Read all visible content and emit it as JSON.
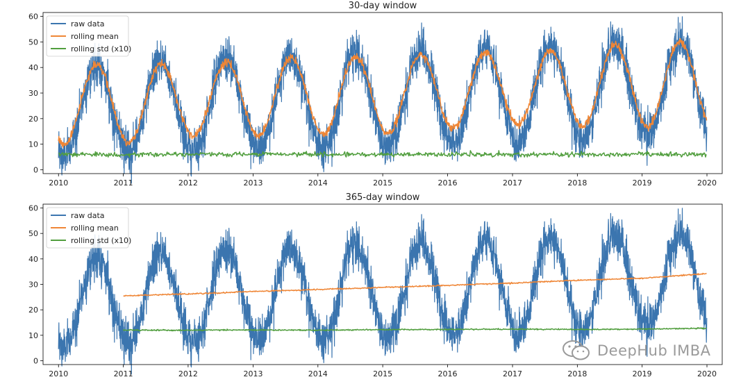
{
  "chart_data": [
    {
      "type": "line",
      "title": "30-day window",
      "xlabel": "",
      "ylabel": "",
      "ylim": [
        -1.5,
        61.5
      ],
      "xlim": [
        "2009-10-06",
        "2020-03-27"
      ],
      "x_ticks": [
        "2010",
        "2011",
        "2012",
        "2013",
        "2014",
        "2015",
        "2016",
        "2017",
        "2018",
        "2019",
        "2020"
      ],
      "y_ticks": [
        0,
        10,
        20,
        30,
        40,
        50,
        60
      ],
      "grid": false,
      "legend_position": "top-left",
      "x_range": [
        "2010-01-01",
        "2019-12-31"
      ],
      "series": [
        {
          "name": "raw data",
          "color": "#3b75af",
          "annual_peaks": [
            48,
            50,
            51,
            52,
            53,
            54,
            55,
            56,
            57,
            57.5
          ],
          "annual_troughs": [
            1,
            2,
            3,
            4,
            4.5,
            5,
            6,
            7,
            8,
            9
          ]
        },
        {
          "name": "rolling mean",
          "color": "#ef8636",
          "window": "30 days",
          "annual_peaks": [
            40,
            42,
            41,
            43,
            44,
            44,
            46,
            46,
            47,
            50
          ],
          "annual_troughs": [
            10,
            10,
            13,
            13,
            14,
            14,
            16,
            18,
            17,
            17
          ]
        },
        {
          "name": "rolling std (x10)",
          "color": "#519e3e",
          "window": "30 days",
          "mean_level": 6,
          "range": [
            5,
            7.5
          ]
        }
      ]
    },
    {
      "type": "line",
      "title": "365-day window",
      "xlabel": "",
      "ylabel": "",
      "ylim": [
        -1.5,
        61.5
      ],
      "xlim": [
        "2009-10-06",
        "2020-03-27"
      ],
      "x_ticks": [
        "2010",
        "2011",
        "2012",
        "2013",
        "2014",
        "2015",
        "2016",
        "2017",
        "2018",
        "2019",
        "2020"
      ],
      "y_ticks": [
        0,
        10,
        20,
        30,
        40,
        50,
        60
      ],
      "grid": false,
      "legend_position": "top-left",
      "x_range": [
        "2010-01-01",
        "2019-12-31"
      ],
      "series": [
        {
          "name": "raw data",
          "color": "#3b75af",
          "annual_peaks": [
            48,
            50,
            51,
            52,
            53,
            54,
            55,
            56,
            57,
            57.5
          ],
          "annual_troughs": [
            1,
            2,
            3,
            4,
            4.5,
            5,
            6,
            7,
            8,
            9
          ]
        },
        {
          "name": "rolling mean",
          "color": "#ef8636",
          "window": "365 days",
          "start": "2011-01-01",
          "x": [
            "2011-01-01",
            "2012-01-01",
            "2013-01-01",
            "2014-01-01",
            "2015-01-01",
            "2016-01-01",
            "2017-01-01",
            "2018-01-01",
            "2019-01-01",
            "2020-01-01"
          ],
          "values": [
            25.5,
            26.2,
            27.2,
            28.0,
            28.8,
            29.6,
            30.5,
            31.6,
            32.4,
            34.2
          ]
        },
        {
          "name": "rolling std (x10)",
          "color": "#519e3e",
          "window": "365 days",
          "start": "2011-01-01",
          "x": [
            "2011-01-01",
            "2012-01-01",
            "2013-01-01",
            "2014-01-01",
            "2015-01-01",
            "2016-01-01",
            "2017-01-01",
            "2018-01-01",
            "2019-01-01",
            "2020-01-01"
          ],
          "values": [
            12.0,
            12.0,
            12.1,
            12.0,
            12.2,
            12.3,
            12.4,
            12.3,
            12.4,
            12.8
          ]
        }
      ]
    }
  ],
  "watermark": {
    "text": "DeepHub IMBA",
    "icon": "wechat-icon"
  }
}
